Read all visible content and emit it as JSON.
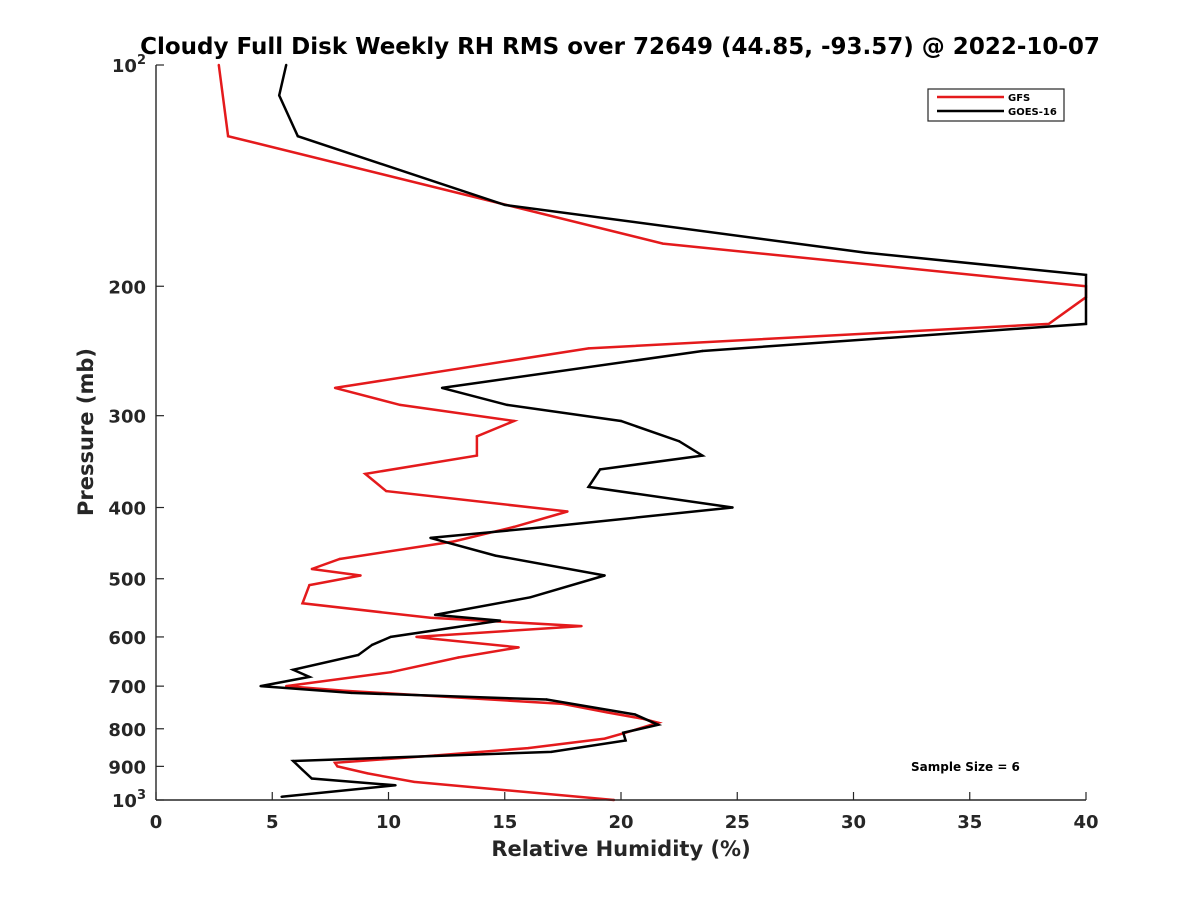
{
  "chart_data": {
    "type": "line",
    "title": "Cloudy Full Disk Weekly RH RMS over 72649 (44.85, -93.57) @ 2022-10-07",
    "xlabel": "Relative Humidity (%)",
    "ylabel": "Pressure (mb)",
    "xlim": [
      0,
      40
    ],
    "ylim": [
      100,
      1000
    ],
    "yscale": "log",
    "y_reversed": true,
    "grid": false,
    "legend_position": "top-right",
    "annotation": "Sample Size = 6",
    "x_ticks": [
      "0",
      "5",
      "10",
      "15",
      "20",
      "25",
      "30",
      "35",
      "40"
    ],
    "y_ticks": [
      {
        "value": 100,
        "base": "10",
        "exp": "2"
      },
      {
        "value": 200,
        "label": "200"
      },
      {
        "value": 300,
        "label": "300"
      },
      {
        "value": 400,
        "label": "400"
      },
      {
        "value": 500,
        "label": "500"
      },
      {
        "value": 600,
        "label": "600"
      },
      {
        "value": 700,
        "label": "700"
      },
      {
        "value": 800,
        "label": "800"
      },
      {
        "value": 900,
        "label": "900"
      },
      {
        "value": 1000,
        "base": "10",
        "exp": "3"
      }
    ],
    "series": [
      {
        "name": "GFS",
        "color": "#e41a1c",
        "points": [
          [
            2.7,
            100
          ],
          [
            3.1,
            125
          ],
          [
            21.8,
            175
          ],
          [
            40,
            200
          ],
          [
            40,
            207
          ],
          [
            38.4,
            225
          ],
          [
            18.6,
            243
          ],
          [
            7.7,
            275
          ],
          [
            10.5,
            290
          ],
          [
            15.4,
            305
          ],
          [
            13.8,
            320
          ],
          [
            13.8,
            340
          ],
          [
            9.0,
            360
          ],
          [
            9.9,
            380
          ],
          [
            17.7,
            405
          ],
          [
            15.4,
            425
          ],
          [
            12.8,
            445
          ],
          [
            7.9,
            470
          ],
          [
            6.7,
            485
          ],
          [
            8.8,
            495
          ],
          [
            6.6,
            510
          ],
          [
            6.3,
            540
          ],
          [
            11.8,
            565
          ],
          [
            18.3,
            580
          ],
          [
            11.2,
            600
          ],
          [
            11.8,
            603
          ],
          [
            15.6,
            620
          ],
          [
            13.0,
            640
          ],
          [
            10.1,
            670
          ],
          [
            5.6,
            700
          ],
          [
            8.1,
            710
          ],
          [
            17.5,
            740
          ],
          [
            19.4,
            760
          ],
          [
            20.9,
            775
          ],
          [
            21.6,
            785
          ],
          [
            20.2,
            810
          ],
          [
            19.3,
            825
          ],
          [
            16.0,
            850
          ],
          [
            12.0,
            870
          ],
          [
            7.7,
            890
          ],
          [
            7.8,
            900
          ],
          [
            9.1,
            920
          ],
          [
            11.1,
            945
          ],
          [
            19.7,
            1000
          ]
        ]
      },
      {
        "name": "GOES-16",
        "color": "#000000",
        "points": [
          [
            5.6,
            100
          ],
          [
            5.3,
            110
          ],
          [
            6.1,
            125
          ],
          [
            15.0,
            155
          ],
          [
            30.5,
            180
          ],
          [
            40,
            193
          ],
          [
            40,
            225
          ],
          [
            23.5,
            245
          ],
          [
            12.3,
            275
          ],
          [
            15.1,
            290
          ],
          [
            20.0,
            305
          ],
          [
            22.5,
            325
          ],
          [
            23.5,
            340
          ],
          [
            19.1,
            355
          ],
          [
            18.6,
            375
          ],
          [
            24.8,
            400
          ],
          [
            16.8,
            425
          ],
          [
            11.8,
            440
          ],
          [
            14.6,
            465
          ],
          [
            19.3,
            495
          ],
          [
            16.1,
            530
          ],
          [
            12.0,
            560
          ],
          [
            14.8,
            570
          ],
          [
            10.1,
            600
          ],
          [
            9.3,
            615
          ],
          [
            8.7,
            635
          ],
          [
            5.9,
            665
          ],
          [
            6.6,
            680
          ],
          [
            4.5,
            700
          ],
          [
            8.4,
            715
          ],
          [
            16.8,
            730
          ],
          [
            20.6,
            765
          ],
          [
            21.6,
            790
          ],
          [
            20.1,
            810
          ],
          [
            20.2,
            830
          ],
          [
            17.0,
            860
          ],
          [
            5.9,
            885
          ],
          [
            6.3,
            910
          ],
          [
            6.7,
            935
          ],
          [
            10.3,
            955
          ],
          [
            5.4,
            990
          ]
        ]
      }
    ]
  }
}
